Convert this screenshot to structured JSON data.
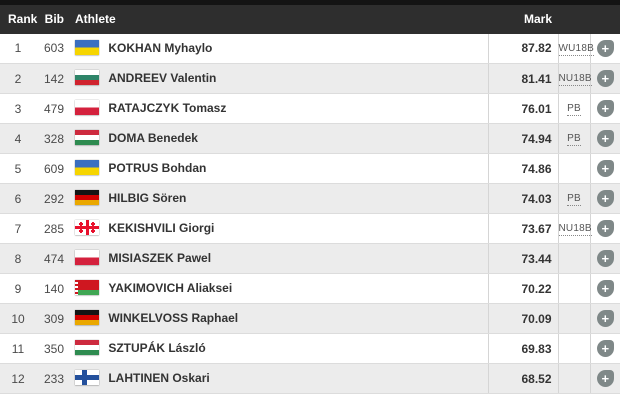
{
  "header": {
    "columns": {
      "rank": "Rank",
      "bib": "Bib",
      "athlete": "Athlete",
      "mark": "Mark"
    },
    "bg_color": "#2e2e2e",
    "top_strip_color": "#141414",
    "text_color": "#ffffff"
  },
  "results": {
    "stripe_color": "#ececec",
    "add_button_color": "#7f8888",
    "add_button_glyph": "+",
    "rows": [
      {
        "rank": "1",
        "bib": "603",
        "name": "KOKHAN Myhaylo",
        "country": "ua",
        "country_name": "Ukraine",
        "mark": "87.82",
        "badge": "WU18B"
      },
      {
        "rank": "2",
        "bib": "142",
        "name": "ANDREEV Valentin",
        "country": "bg",
        "country_name": "Bulgaria",
        "mark": "81.41",
        "badge": "NU18B"
      },
      {
        "rank": "3",
        "bib": "479",
        "name": "RATAJCZYK Tomasz",
        "country": "pl",
        "country_name": "Poland",
        "mark": "76.01",
        "badge": "PB"
      },
      {
        "rank": "4",
        "bib": "328",
        "name": "DOMA Benedek",
        "country": "hu",
        "country_name": "Hungary",
        "mark": "74.94",
        "badge": "PB"
      },
      {
        "rank": "5",
        "bib": "609",
        "name": "POTRUS Bohdan",
        "country": "ua",
        "country_name": "Ukraine",
        "mark": "74.86",
        "badge": ""
      },
      {
        "rank": "6",
        "bib": "292",
        "name": "HILBIG Sören",
        "country": "de",
        "country_name": "Germany",
        "mark": "74.03",
        "badge": "PB"
      },
      {
        "rank": "7",
        "bib": "285",
        "name": "KEKISHVILI Giorgi",
        "country": "ge",
        "country_name": "Georgia",
        "mark": "73.67",
        "badge": "NU18B"
      },
      {
        "rank": "8",
        "bib": "474",
        "name": "MISIASZEK Pawel",
        "country": "pl",
        "country_name": "Poland",
        "mark": "73.44",
        "badge": ""
      },
      {
        "rank": "9",
        "bib": "140",
        "name": "YAKIMOVICH Aliaksei",
        "country": "by",
        "country_name": "Belarus",
        "mark": "70.22",
        "badge": ""
      },
      {
        "rank": "10",
        "bib": "309",
        "name": "WINKELVOSS Raphael",
        "country": "de",
        "country_name": "Germany",
        "mark": "70.09",
        "badge": ""
      },
      {
        "rank": "11",
        "bib": "350",
        "name": "SZTUPÁK László",
        "country": "hu",
        "country_name": "Hungary",
        "mark": "69.83",
        "badge": ""
      },
      {
        "rank": "12",
        "bib": "233",
        "name": "LAHTINEN Oskari",
        "country": "fi",
        "country_name": "Finland",
        "mark": "68.52",
        "badge": ""
      }
    ]
  }
}
